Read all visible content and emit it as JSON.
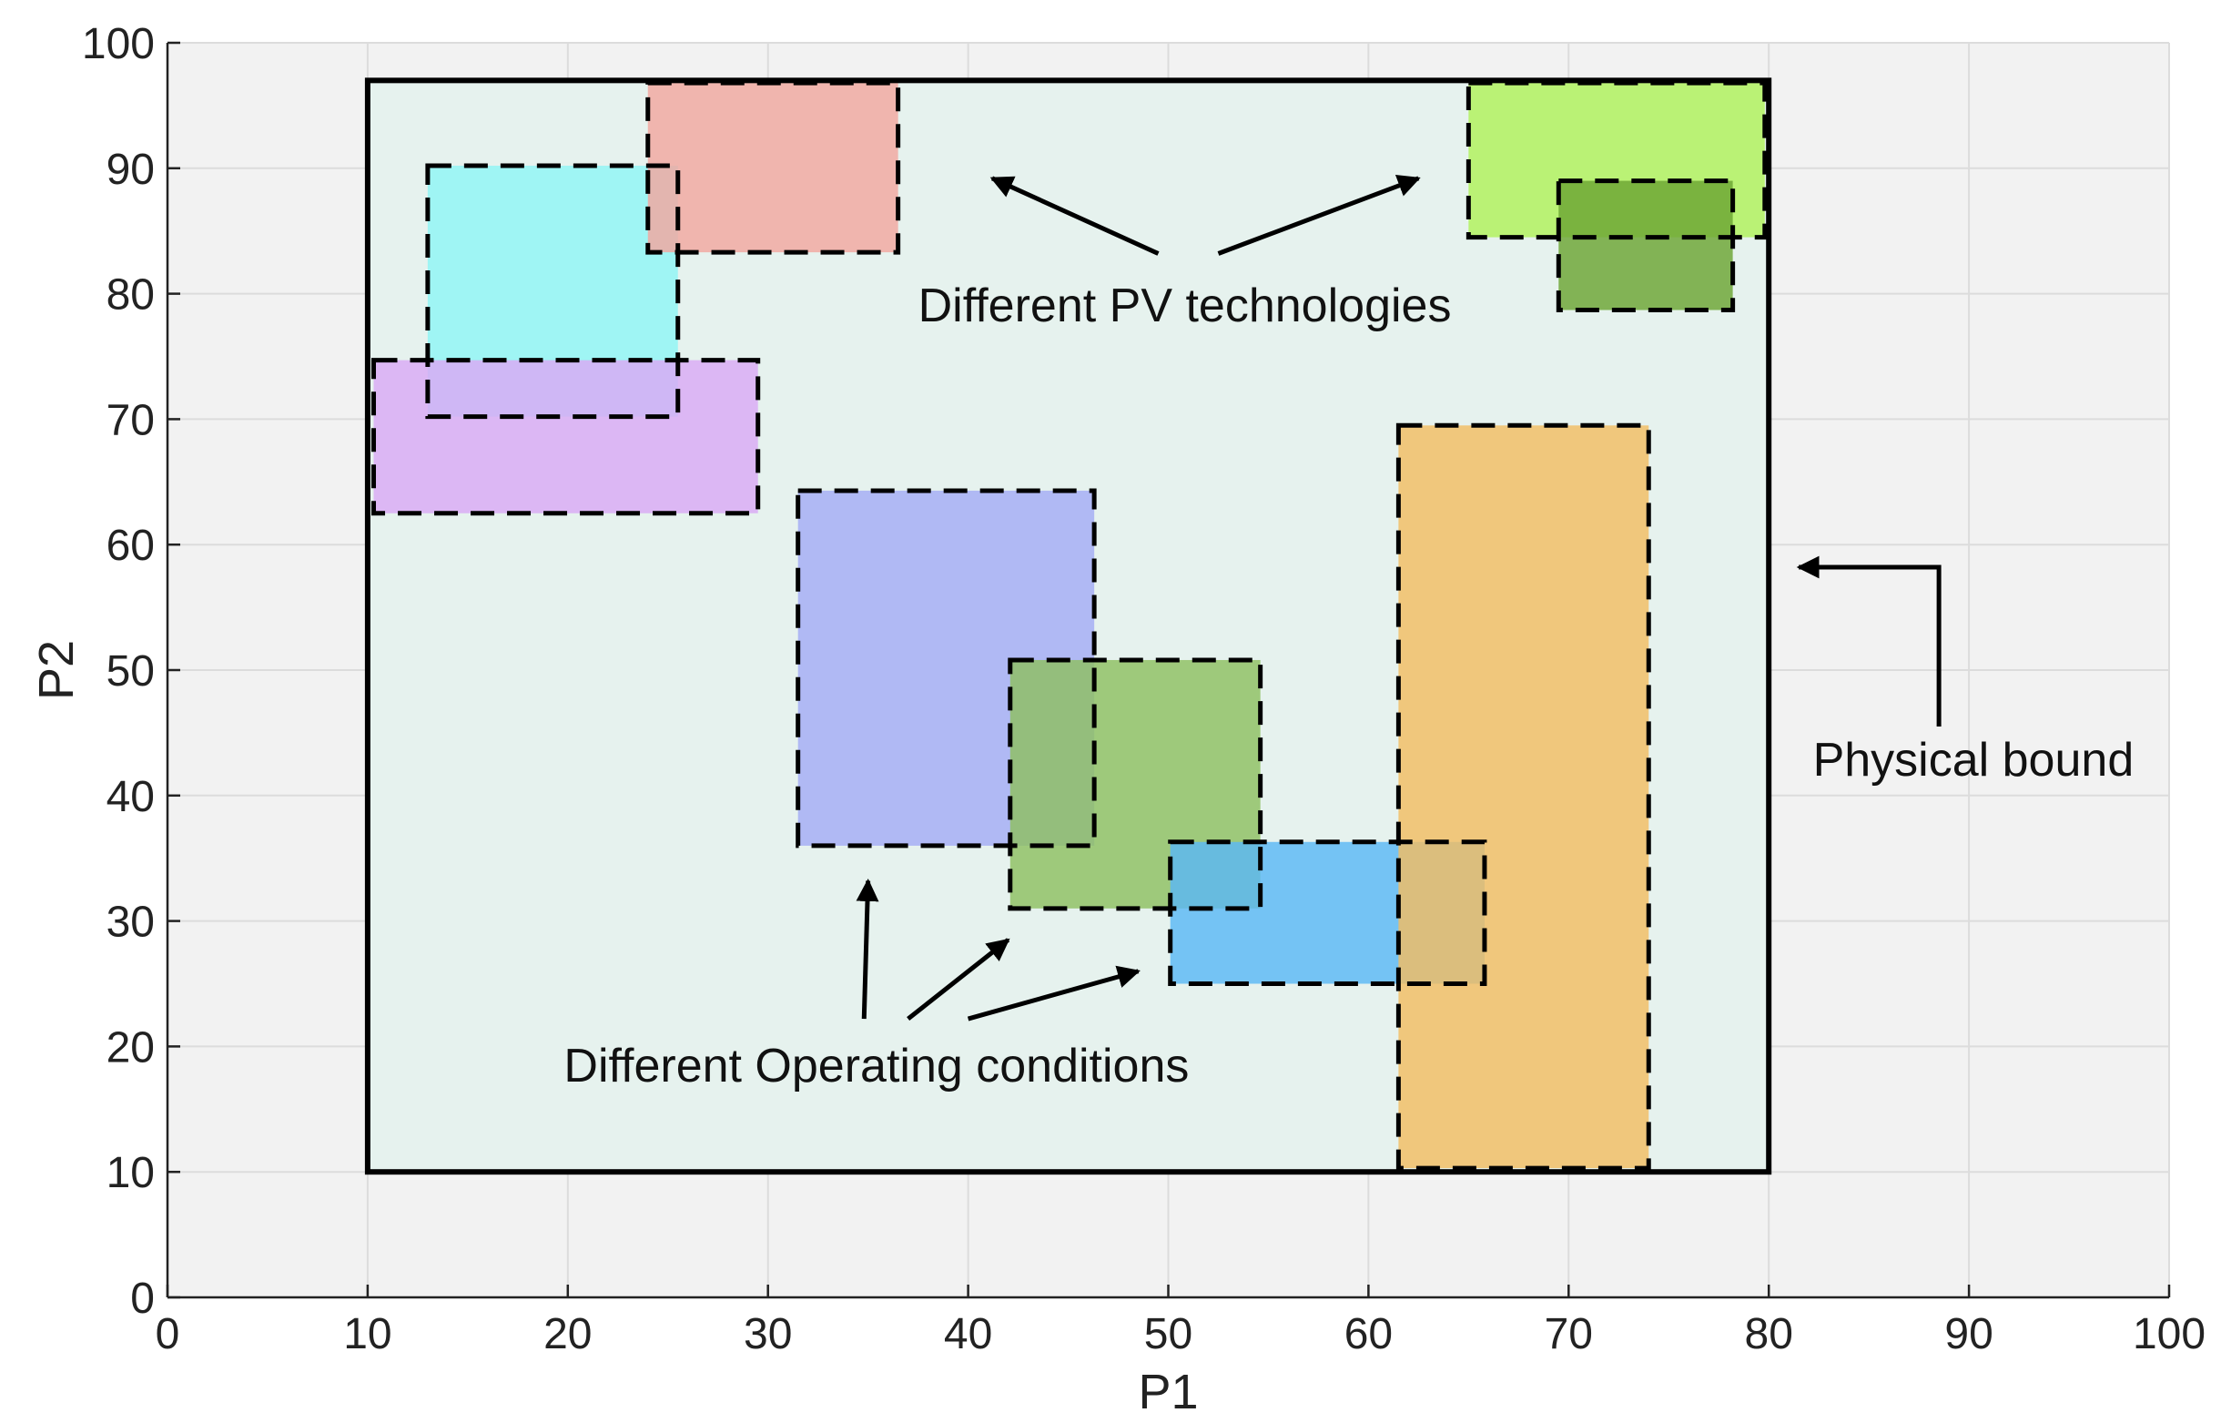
{
  "chart_data": {
    "type": "rectangle-regions",
    "title": "",
    "xlabel": "P1",
    "ylabel": "P2",
    "xlim": [
      0,
      100
    ],
    "ylim": [
      0,
      100
    ],
    "xticks": [
      0,
      10,
      20,
      30,
      40,
      50,
      60,
      70,
      80,
      90,
      100
    ],
    "yticks": [
      0,
      10,
      20,
      30,
      40,
      50,
      60,
      70,
      80,
      90,
      100
    ],
    "grid": true,
    "background_color": "#f2f2f2",
    "physical_bound": {
      "x0": 10,
      "x1": 80,
      "y0": 10,
      "y1": 97,
      "fill": "#e6f2ee",
      "label": "Physical bound"
    },
    "regions": [
      {
        "group": "pv-technology",
        "x0": 13,
        "x1": 25.5,
        "y0": 70.2,
        "y1": 90.2,
        "color": "#8ff5f5"
      },
      {
        "group": "pv-technology",
        "x0": 24,
        "x1": 36.5,
        "y0": 83.3,
        "y1": 96.8,
        "color": "#f2a7a0"
      },
      {
        "group": "pv-technology",
        "x0": 10.3,
        "x1": 29.5,
        "y0": 62.5,
        "y1": 74.7,
        "color": "#d9a9f5"
      },
      {
        "group": "pv-technology",
        "x0": 65,
        "x1": 79.8,
        "y0": 84.5,
        "y1": 96.8,
        "color": "#b0f25a"
      },
      {
        "group": "pv-technology",
        "x0": 69.5,
        "x1": 78.2,
        "y0": 78.7,
        "y1": 89,
        "color": "#6ba533"
      },
      {
        "group": "operating-condition",
        "x0": 31.5,
        "x1": 46.3,
        "y0": 36,
        "y1": 64.3,
        "color": "#a3acf5"
      },
      {
        "group": "operating-condition",
        "x0": 42.1,
        "x1": 54.6,
        "y0": 31,
        "y1": 50.8,
        "color": "#8ec061"
      },
      {
        "group": "operating-condition",
        "x0": 50.1,
        "x1": 65.8,
        "y0": 25,
        "y1": 36.3,
        "color": "#5ab8f5"
      },
      {
        "group": "operating-condition",
        "x0": 61.5,
        "x1": 74,
        "y0": 10.3,
        "y1": 69.5,
        "color": "#f2bd63"
      }
    ],
    "annotations": [
      {
        "text": "Different PV technologies",
        "x": 37.5,
        "y": 77.8
      },
      {
        "text": "Different Operating conditions",
        "x": 19.8,
        "y": 17.2
      },
      {
        "text": "Physical bound",
        "x": 82.2,
        "y": 41.6
      }
    ],
    "arrows": [
      {
        "from": [
          49.5,
          83.2
        ],
        "to": [
          41.2,
          89.2
        ]
      },
      {
        "from": [
          52.5,
          83.2
        ],
        "to": [
          62.5,
          89.2
        ]
      },
      {
        "from": [
          34.8,
          22.2
        ],
        "to": [
          35,
          33.2
        ]
      },
      {
        "from": [
          37,
          22.2
        ],
        "to": [
          42,
          28.5
        ]
      },
      {
        "from": [
          40,
          22.2
        ],
        "to": [
          48.5,
          26
        ]
      },
      {
        "from": [
          88.5,
          45.5
        ],
        "to": [
          81.5,
          58.2
        ],
        "elbow": [
          88.5,
          58.2
        ]
      }
    ]
  }
}
